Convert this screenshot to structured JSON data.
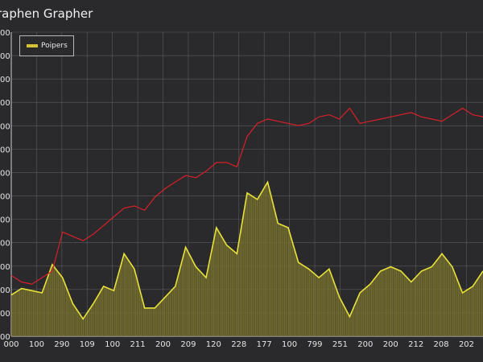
{
  "title": "raphen Grapher",
  "legend": {
    "entries": [
      "Poipers"
    ]
  },
  "colors": {
    "background": "#2a2a2c",
    "grid": "#5a5a5e",
    "series_yellow": "#e8e23a",
    "series_red": "#d8202a",
    "fill_yellow": "#6f6a2c"
  },
  "chart_data": {
    "type": "line",
    "x": [
      0,
      8,
      16,
      24,
      32,
      40,
      48,
      56,
      64,
      72,
      80,
      88,
      96,
      104,
      112,
      120,
      128,
      136,
      144,
      152,
      160,
      168,
      176,
      184,
      192,
      200,
      208,
      216,
      224,
      232,
      240,
      248,
      256,
      264,
      272,
      280,
      288,
      296,
      304,
      312,
      320,
      328,
      336,
      344,
      352,
      360,
      368
    ],
    "ylim": [
      0,
      1400
    ],
    "xlim": [
      0,
      368
    ],
    "x_tick_labels": [
      "000",
      "100",
      "290",
      "109",
      "100",
      "211",
      "200",
      "209",
      "120",
      "228",
      "177",
      "100",
      "799",
      "251",
      "200",
      "200",
      "212",
      "208",
      "202"
    ],
    "y_tick_labels": [
      "00",
      "00",
      "00",
      "00",
      "00",
      "00",
      "00",
      "00",
      "00",
      "00",
      "00",
      "00",
      "00",
      "00"
    ],
    "series": [
      {
        "name": "Poipers",
        "values": [
          190,
          220,
          210,
          200,
          330,
          270,
          150,
          80,
          150,
          230,
          210,
          380,
          310,
          130,
          130,
          180,
          230,
          410,
          320,
          270,
          500,
          420,
          380,
          660,
          630,
          710,
          520,
          500,
          340,
          310,
          270,
          310,
          180,
          90,
          200,
          240,
          300,
          320,
          300,
          250,
          300,
          320,
          380,
          320,
          200,
          230,
          300
        ]
      },
      {
        "values": [
          280,
          250,
          240,
          270,
          300,
          480,
          460,
          440,
          470,
          510,
          550,
          590,
          600,
          580,
          640,
          680,
          710,
          740,
          730,
          760,
          800,
          800,
          780,
          920,
          980,
          1000,
          990,
          980,
          970,
          980,
          1010,
          1020,
          1000,
          1050,
          980,
          990,
          1000,
          1010,
          1020,
          1030,
          1010,
          1000,
          990,
          1020,
          1050,
          1020,
          1010
        ]
      }
    ]
  }
}
